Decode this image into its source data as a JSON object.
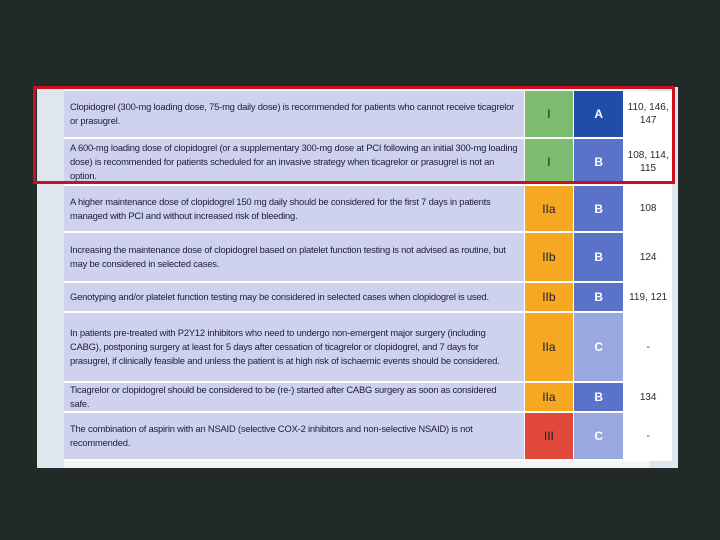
{
  "colors": {
    "background": "#212a27",
    "page": "#f3f5f8",
    "text_cell": "#cfd2ec",
    "class_I": "#7dbb6f",
    "class_IIa": "#f7a823",
    "class_IIb": "#f7a823",
    "class_III": "#e14a3a",
    "level_A": "#1f4da8",
    "level_B": "#5a73c8",
    "level_C": "#9aa8e0",
    "highlight": "#c8111c"
  },
  "rows": [
    {
      "text": "Clopidogrel (300-mg loading dose, 75-mg daily dose) is recommended for patients who cannot receive ticagrelor or prasugrel.",
      "class": "I",
      "level": "A",
      "refs": "110, 146, 147"
    },
    {
      "text": "A 600-mg loading dose of clopidogrel (or a supplementary 300-mg dose at PCI following an initial 300-mg loading dose) is recommended for patients scheduled for an invasive strategy when ticagrelor or prasugrel is not an option.",
      "class": "I",
      "level": "B",
      "refs": "108, 114, 115"
    },
    {
      "text": "A higher maintenance dose of clopidogrel 150 mg daily should be considered for the first 7 days in patients managed with PCI and without increased risk of bleeding.",
      "class": "IIa",
      "level": "B",
      "refs": "108"
    },
    {
      "text": "Increasing the maintenance dose of clopidogrel based on platelet function testing is not advised as routine, but may be considered in selected cases.",
      "class": "IIb",
      "level": "B",
      "refs": "124"
    },
    {
      "text": "Genotyping and/or platelet function testing may be considered in selected cases when clopidogrel is used.",
      "class": "IIb",
      "level": "B",
      "refs": "119, 121"
    },
    {
      "text": "In patients pre-treated with P2Y12 inhibitors who need to undergo non-emergent major surgery (including CABG), postponing surgery at least for 5 days after cessation of ticagrelor or clopidogrel, and 7 days for prasugrel, if clinically feasible and unless the patient is at high risk of ischaemic events should be considered.",
      "class": "IIa",
      "level": "C",
      "refs": "-"
    },
    {
      "text": "Ticagrelor or clopidogrel should be considered to be (re-) started after CABG surgery as soon as considered safe.",
      "class": "IIa",
      "level": "B",
      "refs": "134"
    },
    {
      "text": "The combination of aspirin with an NSAID (selective COX-2 inhibitors and non-selective NSAID) is not recommended.",
      "class": "III",
      "level": "C",
      "refs": "-"
    }
  ]
}
